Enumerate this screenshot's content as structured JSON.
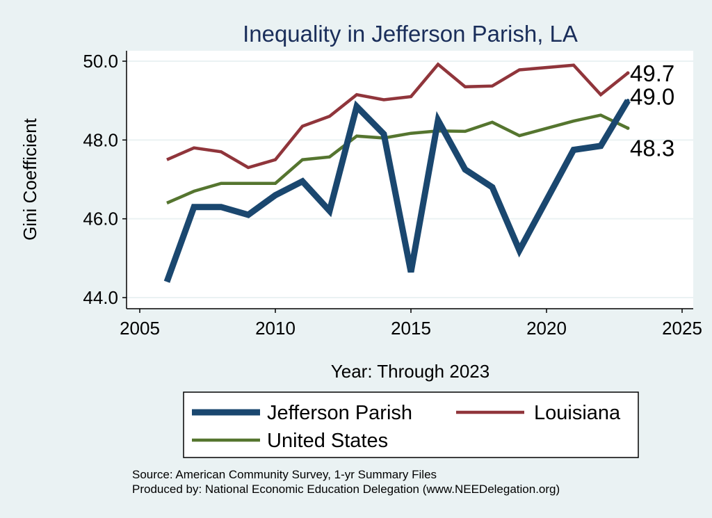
{
  "chart_data": {
    "type": "line",
    "title": "Inequality in Jefferson Parish, LA",
    "xlabel": "Year: Through 2023",
    "ylabel": "Gini Coefficient",
    "xlim": [
      2005,
      2025
    ],
    "ylim": [
      44.0,
      50.0
    ],
    "xticks": [
      2005,
      2010,
      2015,
      2020,
      2025
    ],
    "yticks": [
      44.0,
      46.0,
      48.0,
      50.0
    ],
    "ytick_labels": [
      "44.0",
      "46.0",
      "48.0",
      "50.0"
    ],
    "grid": true,
    "series": [
      {
        "name": "Jefferson Parish",
        "color": "#1a476f",
        "x": [
          2006,
          2007,
          2008,
          2009,
          2010,
          2011,
          2012,
          2013,
          2014,
          2015,
          2016,
          2017,
          2018,
          2019,
          2021,
          2022,
          2023
        ],
        "values": [
          44.4,
          46.3,
          46.3,
          46.1,
          46.6,
          46.95,
          46.2,
          48.85,
          48.15,
          44.65,
          48.5,
          47.25,
          46.8,
          45.2,
          47.75,
          47.85,
          49.0
        ],
        "end_label": "49.0"
      },
      {
        "name": "Louisiana",
        "color": "#90353b",
        "x": [
          2006,
          2007,
          2008,
          2009,
          2010,
          2011,
          2012,
          2013,
          2014,
          2015,
          2016,
          2017,
          2018,
          2019,
          2021,
          2022,
          2023
        ],
        "values": [
          47.5,
          47.8,
          47.7,
          47.3,
          47.5,
          48.35,
          48.6,
          49.15,
          49.02,
          49.1,
          49.92,
          49.35,
          49.37,
          49.78,
          49.9,
          49.15,
          49.7
        ],
        "end_label": "49.7"
      },
      {
        "name": "United States",
        "color": "#55752f",
        "x": [
          2006,
          2007,
          2008,
          2009,
          2010,
          2011,
          2012,
          2013,
          2014,
          2015,
          2016,
          2017,
          2018,
          2019,
          2021,
          2022,
          2023
        ],
        "values": [
          46.4,
          46.7,
          46.9,
          46.9,
          46.9,
          47.5,
          47.57,
          48.1,
          48.05,
          48.17,
          48.23,
          48.22,
          48.45,
          48.11,
          48.48,
          48.63,
          48.3
        ],
        "end_label": "48.3"
      }
    ],
    "legend": {
      "placement": "bottom",
      "entries": [
        "Jefferson Parish",
        "Louisiana",
        "United States"
      ]
    },
    "notes": [
      "Source: American Community Survey, 1-yr Summary Files",
      "Produced by: National Economic Education Delegation (www.NEEDelegation.org)"
    ]
  }
}
